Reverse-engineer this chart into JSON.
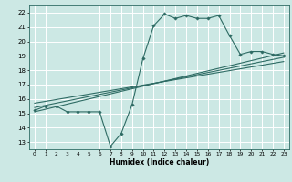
{
  "title": "",
  "xlabel": "Humidex (Indice chaleur)",
  "xlim": [
    -0.5,
    23.5
  ],
  "ylim": [
    12.5,
    22.5
  ],
  "yticks": [
    13,
    14,
    15,
    16,
    17,
    18,
    19,
    20,
    21,
    22
  ],
  "xticks": [
    0,
    1,
    2,
    3,
    4,
    5,
    6,
    7,
    8,
    9,
    10,
    11,
    12,
    13,
    14,
    15,
    16,
    17,
    18,
    19,
    20,
    21,
    22,
    23
  ],
  "bg_color": "#cce8e4",
  "line_color": "#2e6b64",
  "grid_color": "#ffffff",
  "main_line_x": [
    0,
    1,
    2,
    3,
    4,
    5,
    6,
    7,
    8,
    9,
    10,
    11,
    12,
    13,
    14,
    15,
    16,
    17,
    18,
    19,
    20,
    21,
    22,
    23
  ],
  "main_line_y": [
    15.2,
    15.5,
    15.5,
    15.1,
    15.1,
    15.1,
    15.1,
    12.7,
    13.6,
    15.6,
    18.8,
    21.1,
    21.9,
    21.6,
    21.8,
    21.6,
    21.6,
    21.8,
    20.4,
    19.1,
    19.3,
    19.3,
    19.1,
    19.0
  ],
  "trend1_x": [
    0,
    23
  ],
  "trend1_y": [
    15.1,
    19.2
  ],
  "trend2_x": [
    0,
    23
  ],
  "trend2_y": [
    15.4,
    18.9
  ],
  "trend3_x": [
    0,
    23
  ],
  "trend3_y": [
    15.7,
    18.6
  ]
}
